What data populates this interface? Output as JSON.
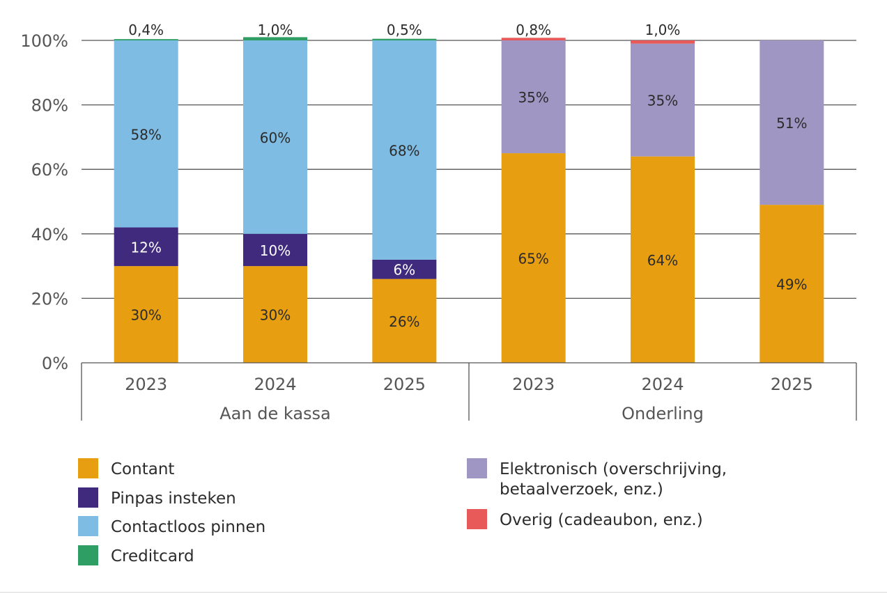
{
  "chart_data": {
    "type": "bar",
    "stacked": true,
    "percent": true,
    "y_ticks": [
      "0%",
      "20%",
      "40%",
      "60%",
      "80%",
      "100%"
    ],
    "ylim": [
      0,
      100
    ],
    "grid": true,
    "groups": [
      {
        "name": "Aan de kassa",
        "categories": [
          "2023",
          "2024",
          "2025"
        ]
      },
      {
        "name": "Onderling",
        "categories": [
          "2023",
          "2024",
          "2025"
        ]
      }
    ],
    "categories": [
      "2023",
      "2024",
      "2025",
      "2023",
      "2024",
      "2025"
    ],
    "series": [
      {
        "name": "Contant",
        "color": "#E89E11",
        "values": [
          30,
          30,
          26,
          65,
          64,
          49
        ],
        "labels": [
          "30%",
          "30%",
          "26%",
          "65%",
          "64%",
          "49%"
        ]
      },
      {
        "name": "Pinpas insteken",
        "color": "#3F2A7D",
        "values": [
          12,
          10,
          6,
          0,
          0,
          0
        ],
        "labels": [
          "12%",
          "10%",
          "6%",
          "",
          "",
          ""
        ]
      },
      {
        "name": "Contactloos pinnen",
        "color": "#7FBCE3",
        "values": [
          58,
          60,
          68,
          0,
          0,
          0
        ],
        "labels": [
          "58%",
          "60%",
          "68%",
          "",
          "",
          ""
        ]
      },
      {
        "name": "Creditcard",
        "color": "#2E9E64",
        "values": [
          0.4,
          1.0,
          0.5,
          0,
          0,
          0
        ],
        "labels": [
          "0,4%",
          "1,0%",
          "0,5%",
          "",
          "",
          ""
        ]
      },
      {
        "name": "Elektronisch (overschrijving, betaalverzoek, enz.)",
        "color": "#A096C3",
        "values": [
          0,
          0,
          0,
          35,
          35,
          51
        ],
        "labels": [
          "",
          "",
          "",
          "35%",
          "35%",
          "51%"
        ]
      },
      {
        "name": "Overig (cadeaubon, enz.)",
        "color": "#E85A5A",
        "values": [
          0,
          0,
          0,
          0.8,
          1.0,
          0
        ],
        "labels": [
          "",
          "",
          "",
          "0,8%",
          "1,0%",
          ""
        ]
      }
    ],
    "legend": {
      "placement": "bottom",
      "left_column": [
        {
          "label": "Contant",
          "color": "#E89E11",
          "icon": "swatch"
        },
        {
          "label": "Pinpas insteken",
          "color": "#3F2A7D",
          "icon": "swatch"
        },
        {
          "label": "Contactloos pinnen",
          "color": "#7FBCE3",
          "icon": "swatch"
        },
        {
          "label": "Creditcard",
          "color": "#2E9E64",
          "icon": "swatch"
        }
      ],
      "right_column": [
        {
          "label_line1": "Elektronisch (overschrijving,",
          "label_line2": "betaalverzoek, enz.)",
          "color": "#A096C3",
          "icon": "swatch"
        },
        {
          "label_line1": "Overig (cadeaubon, enz.)",
          "label_line2": "",
          "color": "#E85A5A",
          "icon": "swatch"
        }
      ]
    }
  }
}
